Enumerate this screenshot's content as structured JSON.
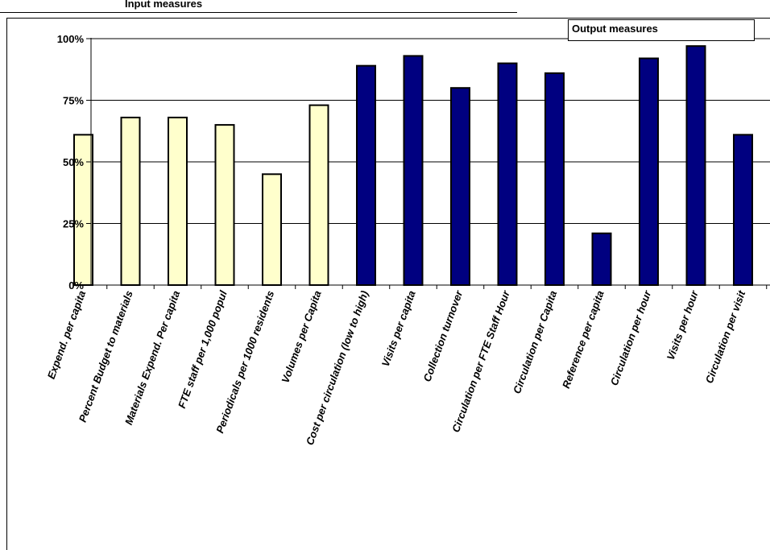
{
  "header": {
    "input_label": "Input measures",
    "output_label": "Output measures"
  },
  "colors": {
    "input_fill": "#ffffcc",
    "output_fill": "#000080",
    "bar_stroke": "#000000",
    "grid": "#000000"
  },
  "chart_data": {
    "type": "bar",
    "title": "",
    "xlabel": "",
    "ylabel": "",
    "ylim": [
      0,
      100
    ],
    "yticks": [
      0,
      25,
      50,
      75,
      100
    ],
    "ytick_labels": [
      "0%",
      "25%",
      "50%",
      "75%",
      "100%"
    ],
    "grid": true,
    "categories": [
      "Expend. per capita",
      "Percent Budget to materials",
      "Materials Expend. Per capita",
      "FTE staff per 1,000 popul",
      "Periodicals per 1000 residents",
      "Volumes per Capita",
      "Cost per circulation (low to high)",
      "Visits per capita",
      "Collection turnover",
      "Circulation per FTE Staff Hour",
      "Circulation per Capita",
      "Reference per capita",
      "Circulation per hour",
      "Visits per hour",
      "Circulation per visit"
    ],
    "values": [
      61,
      68,
      68,
      65,
      45,
      73,
      89,
      93,
      80,
      90,
      86,
      21,
      92,
      97,
      61
    ],
    "groups": [
      "input",
      "input",
      "input",
      "input",
      "input",
      "input",
      "output",
      "output",
      "output",
      "output",
      "output",
      "output",
      "output",
      "output",
      "output"
    ]
  }
}
